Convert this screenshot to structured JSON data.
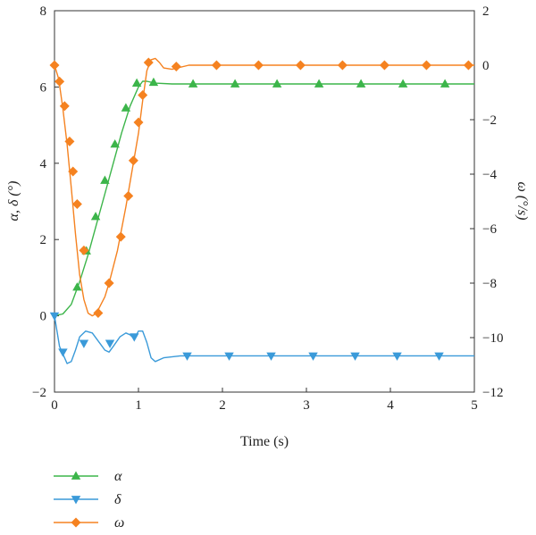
{
  "chart_data": {
    "type": "line",
    "xlabel": "Time (s)",
    "ylabel_left": "α, δ (°)",
    "ylabel_right": "ω (°/s)",
    "xlim": [
      0,
      5
    ],
    "ylim_left": [
      -2,
      8
    ],
    "ylim_right": [
      -12,
      2
    ],
    "x_ticks": [
      "0",
      "1",
      "2",
      "3",
      "4",
      "5"
    ],
    "y_left_ticks": [
      "−2",
      "0",
      "2",
      "4",
      "6",
      "8"
    ],
    "y_right_ticks": [
      "−12",
      "−10",
      "−8",
      "−6",
      "−4",
      "−2",
      "0",
      "2"
    ],
    "grid": false,
    "legend_position": "bottom-left",
    "series": [
      {
        "name": "α",
        "axis": "left",
        "color": "#3cb54a",
        "marker": "triangle-up",
        "curve_x": [
          0,
          0.1,
          0.2,
          0.3,
          0.4,
          0.5,
          0.6,
          0.7,
          0.8,
          0.9,
          1.0,
          1.05,
          1.1,
          1.2,
          1.4,
          1.6,
          2,
          3,
          4,
          5
        ],
        "curve_y": [
          0,
          0.05,
          0.3,
          0.9,
          1.6,
          2.4,
          3.2,
          4.0,
          4.8,
          5.5,
          6.0,
          6.15,
          6.15,
          6.1,
          6.08,
          6.08,
          6.08,
          6.08,
          6.08,
          6.08
        ],
        "marker_x": [
          0.27,
          0.38,
          0.49,
          0.6,
          0.72,
          0.85,
          0.98,
          1.18,
          1.65,
          2.15,
          2.65,
          3.15,
          3.65,
          4.15,
          4.65
        ],
        "marker_y": [
          0.75,
          1.7,
          2.6,
          3.55,
          4.5,
          5.45,
          6.1,
          6.12,
          6.08,
          6.08,
          6.08,
          6.08,
          6.08,
          6.08,
          6.08
        ]
      },
      {
        "name": "δ",
        "axis": "left",
        "color": "#3a9ad9",
        "marker": "triangle-down",
        "curve_x": [
          0,
          0.03,
          0.06,
          0.1,
          0.15,
          0.2,
          0.25,
          0.3,
          0.37,
          0.45,
          0.5,
          0.55,
          0.6,
          0.65,
          0.7,
          0.78,
          0.85,
          0.9,
          0.95,
          1.0,
          1.05,
          1.1,
          1.15,
          1.2,
          1.3,
          1.5,
          2,
          5
        ],
        "curve_y": [
          0,
          -0.4,
          -0.8,
          -1.0,
          -1.25,
          -1.2,
          -0.9,
          -0.55,
          -0.4,
          -0.45,
          -0.6,
          -0.75,
          -0.9,
          -0.95,
          -0.8,
          -0.55,
          -0.45,
          -0.5,
          -0.6,
          -0.4,
          -0.4,
          -0.7,
          -1.1,
          -1.2,
          -1.1,
          -1.05,
          -1.05,
          -1.05
        ],
        "marker_x": [
          0,
          0.1,
          0.35,
          0.66,
          0.95,
          1.58,
          2.08,
          2.58,
          3.08,
          3.58,
          4.08,
          4.58
        ],
        "marker_y": [
          0,
          -0.95,
          -0.72,
          -0.72,
          -0.55,
          -1.05,
          -1.05,
          -1.05,
          -1.05,
          -1.05,
          -1.05,
          -1.05
        ]
      },
      {
        "name": "ω",
        "axis": "right",
        "color": "#f58220",
        "marker": "diamond",
        "curve_x": [
          0,
          0.05,
          0.1,
          0.15,
          0.2,
          0.25,
          0.3,
          0.35,
          0.4,
          0.45,
          0.5,
          0.55,
          0.6,
          0.65,
          0.7,
          0.75,
          0.8,
          0.85,
          0.9,
          0.95,
          1.0,
          1.05,
          1.1,
          1.15,
          1.2,
          1.25,
          1.3,
          1.4,
          1.6,
          2,
          5
        ],
        "curve_y": [
          0,
          -0.5,
          -1.6,
          -2.9,
          -4.5,
          -6.2,
          -7.7,
          -8.6,
          -9.1,
          -9.2,
          -9.1,
          -8.8,
          -8.5,
          -8.0,
          -7.4,
          -6.8,
          -6.0,
          -5.2,
          -4.3,
          -3.4,
          -2.5,
          -1.3,
          -0.2,
          0.2,
          0.25,
          0.1,
          -0.1,
          -0.15,
          0,
          0,
          0
        ],
        "marker_x": [
          0,
          0.06,
          0.12,
          0.18,
          0.22,
          0.27,
          0.35,
          0.52,
          0.65,
          0.79,
          0.88,
          0.94,
          1.0,
          1.05,
          1.12,
          1.45,
          1.93,
          2.43,
          2.93,
          3.43,
          3.93,
          4.43,
          4.93
        ],
        "marker_y": [
          0,
          -0.6,
          -1.5,
          -2.8,
          -3.9,
          -5.1,
          -6.8,
          -9.1,
          -8.0,
          -6.3,
          -4.8,
          -3.5,
          -2.1,
          -1.1,
          0.1,
          -0.05,
          0,
          0,
          0,
          0,
          0,
          0,
          0
        ]
      }
    ]
  }
}
